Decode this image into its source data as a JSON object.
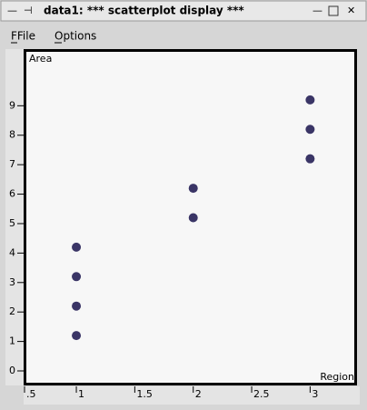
{
  "window": {
    "title": "data1: *** scatterplot display ***"
  },
  "menu": {
    "items": [
      "FFile",
      "Options"
    ]
  },
  "chart_data": {
    "type": "scatter",
    "x_label": "Region",
    "y_label": "Area",
    "series": [
      {
        "name": "Area",
        "color": "#3a3566",
        "x": [
          1,
          1,
          1,
          1,
          2,
          2,
          3,
          3,
          3
        ],
        "values": [
          4.2,
          3.2,
          2.2,
          1.2,
          6.2,
          5.2,
          9.2,
          8.2,
          7.2
        ]
      }
    ],
    "xlim": [
      0.58,
      3.37
    ],
    "xticks": [
      {
        "value": 0.5,
        "label": ".5"
      },
      1,
      1.5,
      2,
      2.5,
      3
    ],
    "ylim": [
      -0.37,
      10.8
    ],
    "yticks": [
      0,
      1,
      2,
      3,
      4,
      5,
      6,
      7,
      8,
      9
    ]
  }
}
